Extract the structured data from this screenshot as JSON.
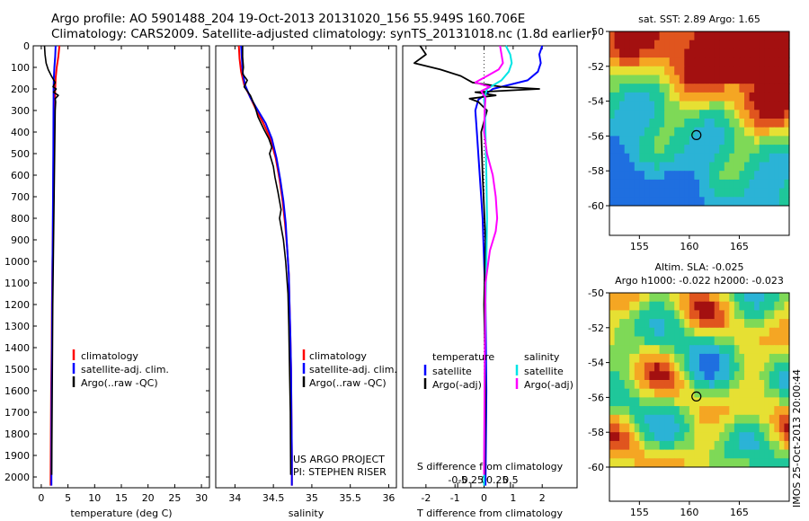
{
  "titles": {
    "line1": "Argo profile: AO 5901488_204 19-Oct-2013 20131020_156 55.949S 160.706E",
    "line2": "Climatology: CARS2009. Satellite-adjusted climatology: synTS_20131018.nc (1.8d earlier)"
  },
  "chart_data": [
    {
      "id": "temperature",
      "type": "line",
      "xlabel": "temperature (deg C)",
      "ylabel": "",
      "xlim": [
        -1.5,
        31.5
      ],
      "ylim": [
        2050,
        0
      ],
      "xticks": [
        0,
        5,
        10,
        15,
        20,
        25,
        30
      ],
      "yticks": [
        0,
        100,
        200,
        300,
        400,
        500,
        600,
        700,
        800,
        900,
        1000,
        1100,
        1200,
        1300,
        1400,
        1500,
        1600,
        1700,
        1800,
        1900,
        2000
      ],
      "legend": {
        "position": "lower-middle",
        "entries": [
          "climatology",
          "satellite-adj. clim.",
          "Argo(..raw -QC)"
        ]
      },
      "series": [
        {
          "name": "climatology",
          "color": "#ff0000",
          "x": [
            3.4,
            3.2,
            2.9,
            2.7,
            2.6,
            2.55,
            2.45,
            2.4,
            2.35,
            2.3,
            2.25,
            2.2,
            2.15,
            2.1,
            2.05,
            2.0,
            1.95,
            1.85,
            1.8,
            1.75
          ],
          "y": [
            0,
            50,
            100,
            150,
            200,
            250,
            300,
            400,
            500,
            600,
            700,
            800,
            900,
            1000,
            1100,
            1200,
            1400,
            1600,
            1800,
            2040
          ]
        },
        {
          "name": "satellite-adj. clim.",
          "color": "#0000ff",
          "x": [
            2.7,
            2.6,
            2.45,
            2.35,
            2.3,
            2.3,
            2.28,
            2.27,
            2.25,
            2.22,
            2.2,
            2.17,
            2.15,
            2.1,
            2.08,
            2.05,
            2.0,
            1.95,
            1.92,
            1.9
          ],
          "y": [
            0,
            50,
            100,
            150,
            200,
            250,
            300,
            400,
            500,
            600,
            700,
            800,
            900,
            1000,
            1100,
            1200,
            1400,
            1600,
            1800,
            2040
          ]
        },
        {
          "name": "Argo(..raw -QC)",
          "color": "#000000",
          "x": [
            0.6,
            0.7,
            0.9,
            1.3,
            1.9,
            2.6,
            2.2,
            2.8,
            2.3,
            3.2,
            2.6,
            2.7,
            2.6,
            2.55,
            2.5,
            2.45,
            2.4,
            2.35,
            2.25,
            2.15,
            2.05,
            1.95
          ],
          "y": [
            0,
            40,
            80,
            110,
            140,
            170,
            190,
            200,
            215,
            230,
            245,
            260,
            300,
            400,
            500,
            600,
            700,
            800,
            1000,
            1200,
            1600,
            1990
          ]
        }
      ]
    },
    {
      "id": "salinity",
      "type": "line",
      "xlabel": "salinity",
      "ylabel": "",
      "xlim": [
        33.75,
        36.1
      ],
      "ylim": [
        2050,
        0
      ],
      "xticks": [
        34,
        34.5,
        35,
        35.5,
        36
      ],
      "xticklabels": [
        "34",
        "34.5",
        "35",
        "35.5",
        "36"
      ],
      "legend": {
        "position": "lower-right",
        "entries": [
          "climatology",
          "satellite-adj. clim.",
          "Argo(..raw -QC)"
        ]
      },
      "annotations": [
        "US ARGO PROJECT",
        "PI: STEPHEN RISER"
      ],
      "series": [
        {
          "name": "climatology",
          "color": "#ff0000",
          "x": [
            34.05,
            34.06,
            34.08,
            34.12,
            34.2,
            34.28,
            34.37,
            34.46,
            34.53,
            34.58,
            34.62,
            34.65,
            34.68,
            34.7,
            34.71,
            34.72,
            34.73,
            34.735,
            34.74,
            34.74
          ],
          "y": [
            0,
            60,
            120,
            180,
            240,
            300,
            360,
            430,
            520,
            620,
            720,
            820,
            940,
            1060,
            1200,
            1340,
            1500,
            1700,
            1900,
            2040
          ]
        },
        {
          "name": "satellite-adj. clim.",
          "color": "#0000ff",
          "x": [
            34.08,
            34.09,
            34.1,
            34.13,
            34.2,
            34.3,
            34.4,
            34.48,
            34.54,
            34.59,
            34.63,
            34.66,
            34.68,
            34.7,
            34.71,
            34.72,
            34.73,
            34.735,
            34.74,
            34.74
          ],
          "y": [
            0,
            60,
            120,
            180,
            240,
            300,
            360,
            430,
            520,
            620,
            720,
            820,
            940,
            1060,
            1200,
            1340,
            1500,
            1700,
            1900,
            2040
          ]
        },
        {
          "name": "Argo(..raw -QC)",
          "color": "#000000",
          "x": [
            34.1,
            34.1,
            34.11,
            34.1,
            34.16,
            34.12,
            34.2,
            34.26,
            34.3,
            34.38,
            34.44,
            34.48,
            34.45,
            34.5,
            34.52,
            34.56,
            34.6,
            34.58,
            34.63,
            34.66,
            34.69,
            34.7,
            34.71,
            34.72,
            34.725
          ],
          "y": [
            0,
            50,
            100,
            130,
            160,
            190,
            230,
            280,
            330,
            390,
            430,
            470,
            500,
            560,
            610,
            680,
            760,
            800,
            900,
            1000,
            1150,
            1300,
            1500,
            1700,
            1990
          ]
        }
      ]
    },
    {
      "id": "difference",
      "type": "line",
      "xlabel": "T difference from climatology",
      "x2label": "S difference from climatology",
      "xlim": [
        -2.8,
        3.2
      ],
      "ylim": [
        2050,
        0
      ],
      "xticks": [
        -2,
        -1,
        0,
        1,
        2
      ],
      "s_xticks": [
        -0.5,
        -0.25,
        0,
        0.25,
        0.5
      ],
      "s_xticklabels": [
        "-0.5",
        "-0.25",
        "0",
        "0.25",
        "0.5"
      ],
      "legend": {
        "position": "lower",
        "temperature_title": "temperature",
        "salinity_title": "salinity",
        "entries": [
          "satellite",
          "Argo(-adj)",
          "satellite",
          "Argo(-adj)"
        ]
      },
      "series": [
        {
          "name": "temperature satellite",
          "color": "#0000ff",
          "x": [
            2.0,
            1.9,
            1.95,
            1.85,
            1.5,
            0.3,
            -0.2,
            -0.3,
            -0.25,
            -0.2,
            -0.15,
            -0.1,
            -0.05,
            0.0,
            0.05,
            0.08,
            0.05
          ],
          "y": [
            0,
            40,
            80,
            120,
            160,
            200,
            250,
            300,
            400,
            500,
            600,
            700,
            800,
            1000,
            1200,
            1600,
            2040
          ]
        },
        {
          "name": "temperature Argo(-adj)",
          "color": "#000000",
          "x": [
            -2.2,
            -2.0,
            -2.4,
            -1.5,
            -0.8,
            -0.4,
            0.6,
            1.9,
            -0.3,
            0.4,
            -0.5,
            -0.2,
            0.1,
            -0.1,
            -0.05,
            0.05,
            0.0,
            0.05,
            0.02
          ],
          "y": [
            0,
            40,
            80,
            110,
            140,
            170,
            190,
            200,
            215,
            230,
            245,
            260,
            300,
            400,
            600,
            900,
            1200,
            1600,
            1990
          ]
        },
        {
          "name": "salinity satellite",
          "color": "#00e5e5",
          "x": [
            0.75,
            0.9,
            0.95,
            0.85,
            0.6,
            0.1,
            0.0,
            0.03,
            0.05,
            0.08,
            0.1,
            0.08,
            0.05,
            0.03,
            0.02,
            0.0
          ],
          "y": [
            0,
            40,
            80,
            120,
            160,
            200,
            250,
            300,
            400,
            600,
            800,
            1000,
            1200,
            1400,
            1600,
            2040
          ]
        },
        {
          "name": "salinity Argo(-adj)",
          "color": "#ff00ff",
          "x": [
            0.55,
            0.6,
            0.65,
            0.5,
            0.1,
            -0.3,
            0.2,
            -0.1,
            0.05,
            0.02,
            0.0,
            0.1,
            0.3,
            0.4,
            0.45,
            0.4,
            0.2,
            0.05,
            0.02,
            0.0
          ],
          "y": [
            0,
            40,
            80,
            110,
            140,
            170,
            190,
            210,
            240,
            300,
            400,
            500,
            600,
            700,
            800,
            860,
            950,
            1100,
            1500,
            1990
          ]
        }
      ]
    },
    {
      "id": "sst_map",
      "type": "heatmap",
      "title": "sat. SST: 2.89 Argo: 1.65",
      "xlim": [
        152,
        170
      ],
      "ylim": [
        -60,
        -50
      ],
      "xticks": [
        155,
        160,
        165
      ],
      "yticks": [
        -50,
        -52,
        -54,
        -56,
        -58,
        -60
      ],
      "marker": {
        "lon": 160.706,
        "lat": -55.949
      }
    },
    {
      "id": "sla_map",
      "type": "heatmap",
      "title": "Altim. SLA: -0.025",
      "subtitle": "Argo h1000: -0.022 h2000: -0.023",
      "xlim": [
        152,
        170
      ],
      "ylim": [
        -60,
        -50
      ],
      "xticks": [
        155,
        160,
        165
      ],
      "yticks": [
        -50,
        -52,
        -54,
        -56,
        -58,
        -60
      ],
      "marker": {
        "lon": 160.706,
        "lat": -55.949
      }
    }
  ],
  "credit": "IMOS 25-Oct-2013 20:00:44"
}
